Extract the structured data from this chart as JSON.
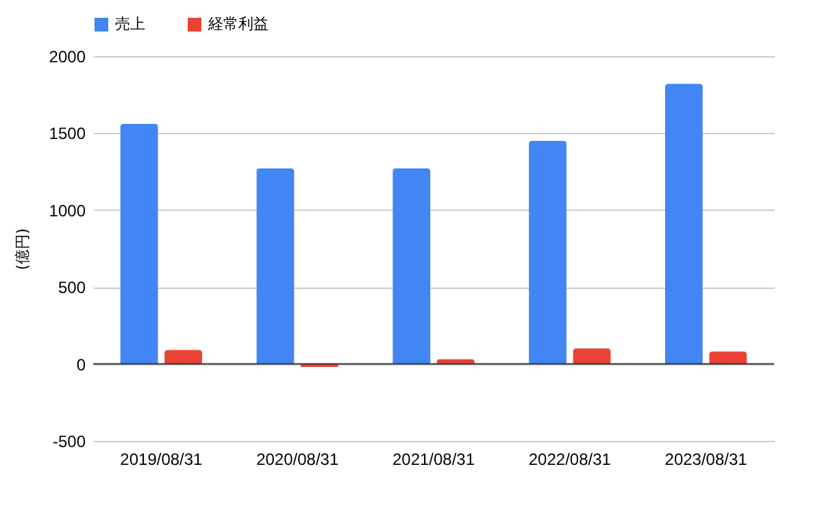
{
  "chart_data": {
    "type": "bar",
    "ylabel": "(億円)",
    "categories": [
      "2019/08/31",
      "2020/08/31",
      "2021/08/31",
      "2022/08/31",
      "2023/08/31"
    ],
    "series": [
      {
        "name": "売上",
        "color": "#4285f4",
        "values": [
          1560,
          1270,
          1270,
          1450,
          1820
        ]
      },
      {
        "name": "経常利益",
        "color": "#ea4335",
        "values": [
          90,
          -20,
          30,
          100,
          80
        ]
      }
    ],
    "ylim": [
      -500,
      2000
    ],
    "yticks": [
      -500,
      0,
      500,
      1000,
      1500,
      2000
    ],
    "grid": "y",
    "legend": "top"
  }
}
